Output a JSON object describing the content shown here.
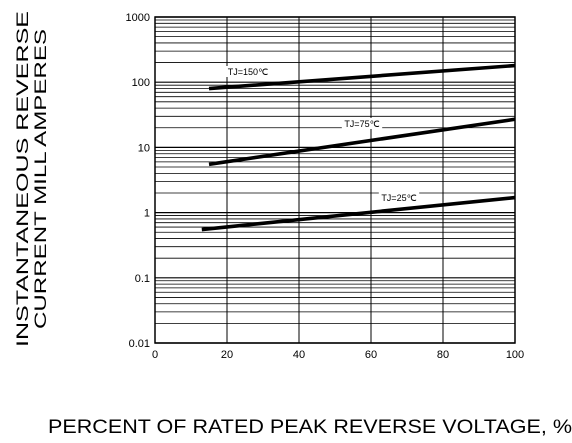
{
  "chart_data": {
    "type": "line",
    "title": "",
    "xlabel": "PERCENT OF RATED PEAK REVERSE VOLTAGE, %",
    "ylabel_line1": "INSTANTANEOUS REVERSE",
    "ylabel_line2": "CURRENT MILL AMPERES",
    "x_scale": "linear",
    "y_scale": "log",
    "xlim": [
      0,
      100
    ],
    "ylim": [
      0.01,
      1000
    ],
    "grid": true,
    "x_ticks": [
      "0",
      "20",
      "40",
      "60",
      "80",
      "100"
    ],
    "y_ticks": [
      "0.01",
      "0.1",
      "1",
      "10",
      "100",
      "1000"
    ],
    "series": [
      {
        "name": "TJ=150℃",
        "x": [
          15,
          100
        ],
        "y": [
          80,
          180
        ]
      },
      {
        "name": "TJ=75℃",
        "x": [
          15,
          100
        ],
        "y": [
          5.5,
          27
        ]
      },
      {
        "name": "TJ=25℃",
        "x": [
          13,
          100
        ],
        "y": [
          0.55,
          1.7
        ]
      }
    ]
  }
}
